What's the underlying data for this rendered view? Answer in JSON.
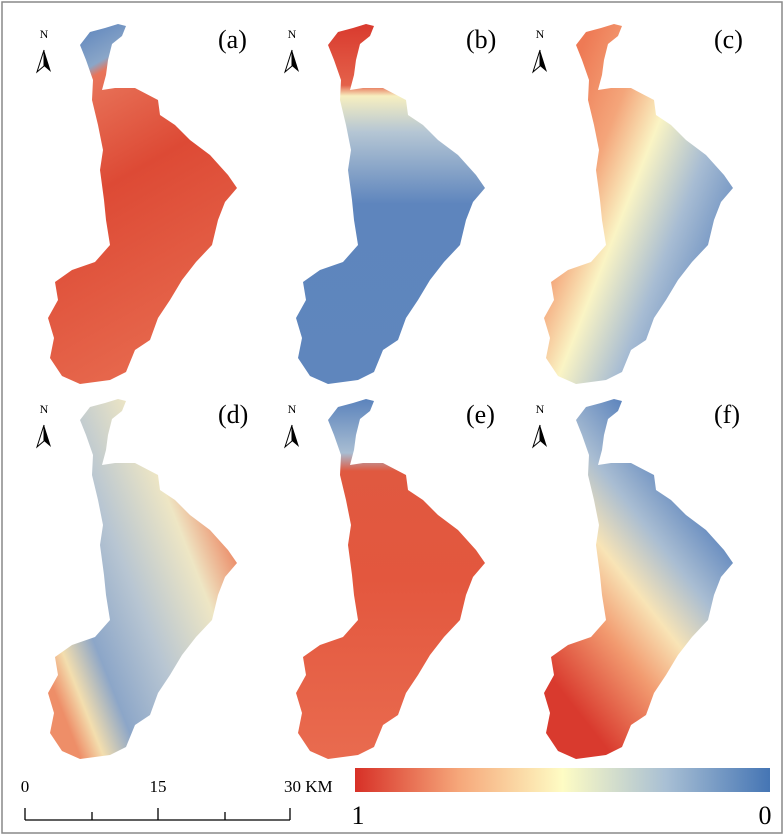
{
  "panels": [
    {
      "label": "(a)",
      "north": "N"
    },
    {
      "label": "(b)",
      "north": "N"
    },
    {
      "label": "(c)",
      "north": "N"
    },
    {
      "label": "(d)",
      "north": "N"
    },
    {
      "label": "(e)",
      "north": "N"
    },
    {
      "label": "(f)",
      "north": "N"
    }
  ],
  "scale_bar": {
    "ticks": [
      "0",
      "15",
      "30 KM"
    ]
  },
  "colorbar": {
    "max_label": "1",
    "min_label": "0"
  }
}
